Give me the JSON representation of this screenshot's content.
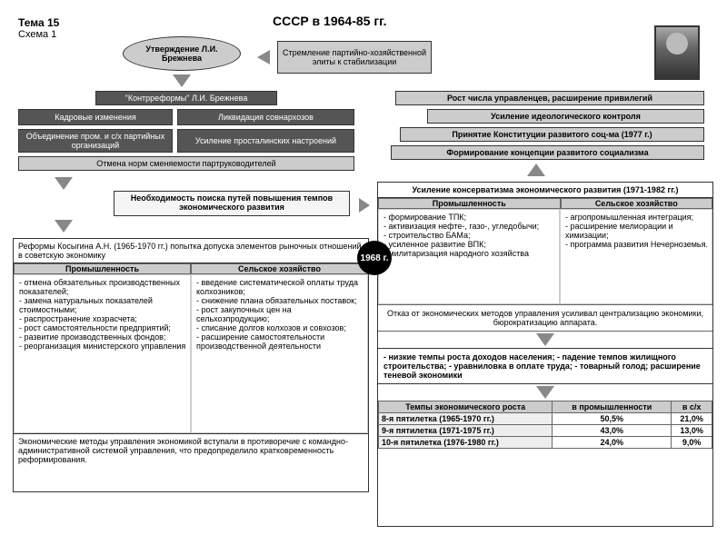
{
  "header": {
    "theme": "Тема 15",
    "scheme": "Схема 1",
    "title": "СССР в 1964-85 гг."
  },
  "top": {
    "ellipse": "Утверждение Л.И. Брежнева",
    "streml": "Стремление партийно-хозяйственной элиты к стабилизации",
    "kontr": "\"Контрреформы\" Л.И. Брежнева",
    "row1a": "Кадровые изменения",
    "row1b": "Ликвидация совнархозов",
    "row2a": "Объединение пром. и с/х партийных организаций",
    "row2b": "Усиление просталинских настроений",
    "row3": "Отмена норм сменяемости партруководителей"
  },
  "rightlist": {
    "r1": "Рост числа управленцев, расширение привилегий",
    "r2": "Усиление идеологического контроля",
    "r3": "Принятие Конституции развитого соц-ма (1977 г.)",
    "r4": "Формирование концепции развитого социализма"
  },
  "mid": {
    "need": "Необходимость поиска путей повышения темпов экономического развития",
    "year": "1968 г."
  },
  "kosygin": {
    "title": "Реформы Косыгина А.Н. (1965-1970 гг.) попытка допуска элементов рыночных отношений в советскую экономику",
    "prom_h": "Промышленность",
    "sh_h": "Сельское хозяйство",
    "prom": [
      "отмена обязательных производственных показателей;",
      "замена натуральных показателей стоимостными;",
      "распространение хозрасчета;",
      "рост самостоятельности предприятий;",
      "развитие производственных фондов;",
      "реорганизация министерского управления"
    ],
    "sh": [
      "введение систематической оплаты труда колхозников;",
      "снижение плана обязательных поставок;",
      "рост закупочных цен на сельхозпродукцию;",
      "списание долгов колхозов и совхозов;",
      "расширение самостоятельности производственной деятельности"
    ],
    "foot": "Экономические методы управления экономикой вступали в противоречие с командно-административной системой управления, что предопределило кратковременность реформирования."
  },
  "conserv": {
    "title": "Усиление консерватизма экономического развития (1971-1982 гг.)",
    "prom_h": "Промышленность",
    "sh_h": "Сельское хозяйство",
    "prom": [
      "формирование ТПК;",
      "активизация нефте-, газо-, угледобычи;",
      "строительство БАМа;",
      "усиленное развитие ВПК;",
      "милитаризация народного хозяйства"
    ],
    "sh": [
      "агропромышленная интеграция;",
      "расширение мелиорации и химизации;",
      "программа развития Нечерноземья."
    ],
    "mid": "Отказ от экономических методов управления усиливал централизацию экономики, бюрократизацию аппарата.",
    "res": "- низкие темпы роста доходов населения; - падение темпов жилищного строительства; - уравниловка в оплате труда; - товарный голод; расширение теневой экономики"
  },
  "table": {
    "h1": "Темпы экономического роста",
    "h2": "в промышленности",
    "h3": "в с/х",
    "rows": [
      {
        "label": "8-я пятилетка (1965-1970 гг.)",
        "p": "50,5%",
        "s": "21,0%"
      },
      {
        "label": "9-я пятилетка (1971-1975 гг.)",
        "p": "43,0%",
        "s": "13,0%"
      },
      {
        "label": "10-я пятилетка (1976-1980 гг.)",
        "p": "24,0%",
        "s": "9,0%"
      }
    ]
  },
  "colors": {
    "dark": "#555",
    "gray": "#ccc",
    "border": "#333"
  }
}
